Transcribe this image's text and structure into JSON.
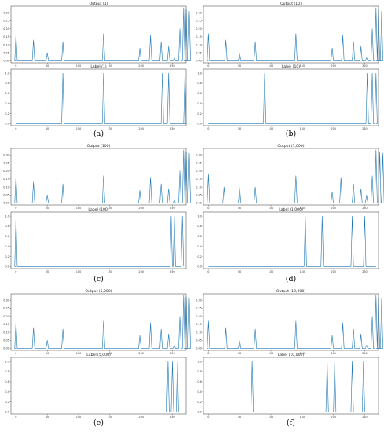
{
  "style": {
    "line_color": "#1f77b4"
  },
  "panels": [
    {
      "caption": "(a)",
      "charts": [
        {
          "type": "line",
          "title": "Output (1)",
          "xticks": [
            0,
            50,
            100,
            150,
            200,
            250
          ],
          "xlim": [
            -8,
            272
          ],
          "yticks": [
            0.0,
            0.05,
            0.1,
            0.15,
            0.2,
            0.25,
            0.3
          ],
          "ylim": [
            -0.012,
            0.34
          ],
          "peaks": [
            [
              0,
              0.17
            ],
            [
              28,
              0.13
            ],
            [
              50,
              0.05
            ],
            [
              75,
              0.12
            ],
            [
              140,
              0.17
            ],
            [
              198,
              0.08
            ],
            [
              215,
              0.16
            ],
            [
              232,
              0.12
            ],
            [
              244,
              0.09
            ],
            [
              253,
              0.02
            ],
            [
              262,
              0.2
            ],
            [
              268,
              0.33
            ],
            [
              272,
              0.32
            ],
            [
              277,
              0.31
            ]
          ]
        },
        {
          "type": "line",
          "title": "Label (1)",
          "xticks": [
            0,
            50,
            100,
            150,
            200,
            250
          ],
          "xlim": [
            -8,
            272
          ],
          "yticks": [
            0.0,
            0.2,
            0.4,
            0.6,
            0.8,
            1.0
          ],
          "ylim": [
            -0.04,
            1.08
          ],
          "peaks": [
            [
              75,
              1.0
            ],
            [
              140,
              1.0
            ],
            [
              234,
              1.0
            ],
            [
              244,
              1.0
            ],
            [
              270,
              1.0
            ]
          ]
        }
      ]
    },
    {
      "caption": "(b)",
      "charts": [
        {
          "type": "line",
          "title": "Output (10)",
          "xticks": [
            0,
            50,
            100,
            150,
            200,
            250
          ],
          "xlim": [
            -8,
            272
          ],
          "yticks": [
            0.0,
            0.05,
            0.1,
            0.15,
            0.2,
            0.25,
            0.3
          ],
          "ylim": [
            -0.012,
            0.34
          ],
          "peaks": [
            [
              0,
              0.17
            ],
            [
              28,
              0.13
            ],
            [
              50,
              0.05
            ],
            [
              75,
              0.12
            ],
            [
              140,
              0.17
            ],
            [
              198,
              0.08
            ],
            [
              215,
              0.16
            ],
            [
              232,
              0.12
            ],
            [
              244,
              0.09
            ],
            [
              253,
              0.02
            ],
            [
              262,
              0.2
            ],
            [
              268,
              0.33
            ],
            [
              272,
              0.32
            ],
            [
              277,
              0.31
            ]
          ]
        },
        {
          "type": "line",
          "title": "Label (10)",
          "xticks": [
            0,
            50,
            100,
            150,
            200,
            250
          ],
          "xlim": [
            -8,
            272
          ],
          "yticks": [
            0.0,
            0.2,
            0.4,
            0.6,
            0.8,
            1.0
          ],
          "ylim": [
            -0.04,
            1.08
          ],
          "peaks": [
            [
              90,
              1.0
            ],
            [
              254,
              1.0
            ],
            [
              262,
              1.0
            ],
            [
              268,
              1.0
            ]
          ]
        }
      ]
    },
    {
      "caption": "(c)",
      "charts": [
        {
          "type": "line",
          "title": "Output (100)",
          "xticks": [
            0,
            50,
            100,
            150,
            200,
            250
          ],
          "xlim": [
            -8,
            272
          ],
          "yticks": [
            0.0,
            0.05,
            0.1,
            0.15,
            0.2,
            0.25,
            0.3
          ],
          "ylim": [
            -0.012,
            0.34
          ],
          "peaks": [
            [
              0,
              0.17
            ],
            [
              28,
              0.13
            ],
            [
              50,
              0.05
            ],
            [
              75,
              0.12
            ],
            [
              140,
              0.17
            ],
            [
              198,
              0.08
            ],
            [
              215,
              0.16
            ],
            [
              232,
              0.12
            ],
            [
              244,
              0.09
            ],
            [
              253,
              0.02
            ],
            [
              262,
              0.2
            ],
            [
              268,
              0.33
            ],
            [
              272,
              0.32
            ],
            [
              277,
              0.31
            ]
          ]
        },
        {
          "type": "line",
          "title": "Label (100)",
          "xticks": [
            0,
            50,
            100,
            150,
            200,
            250
          ],
          "xlim": [
            -8,
            272
          ],
          "yticks": [
            0.0,
            0.2,
            0.4,
            0.6,
            0.8,
            1.0
          ],
          "ylim": [
            -0.04,
            1.08
          ],
          "peaks": [
            [
              0,
              1.0
            ],
            [
              248,
              1.0
            ],
            [
              253,
              1.0
            ],
            [
              266,
              1.0
            ]
          ]
        }
      ]
    },
    {
      "caption": "(d)",
      "charts": [
        {
          "type": "line",
          "title": "Output (1,000)",
          "xticks": [
            0,
            50,
            100,
            150,
            200,
            250
          ],
          "xlim": [
            -8,
            272
          ],
          "yticks": [
            0.0,
            0.05,
            0.1,
            0.15,
            0.2,
            0.25,
            0.3
          ],
          "ylim": [
            -0.012,
            0.34
          ],
          "peaks": [
            [
              0,
              0.18
            ],
            [
              25,
              0.1
            ],
            [
              50,
              0.1
            ],
            [
              75,
              0.1
            ],
            [
              140,
              0.17
            ],
            [
              198,
              0.07
            ],
            [
              212,
              0.16
            ],
            [
              232,
              0.12
            ],
            [
              244,
              0.09
            ],
            [
              253,
              0.05
            ],
            [
              262,
              0.17
            ],
            [
              268,
              0.33
            ],
            [
              274,
              0.32
            ],
            [
              279,
              0.31
            ]
          ]
        },
        {
          "type": "line",
          "title": "Label (1,000)",
          "xticks": [
            0,
            50,
            100,
            150,
            200,
            250
          ],
          "xlim": [
            -8,
            272
          ],
          "yticks": [
            0.0,
            0.2,
            0.4,
            0.6,
            0.8,
            1.0
          ],
          "ylim": [
            -0.04,
            1.08
          ],
          "peaks": [
            [
              155,
              1.0
            ],
            [
              182,
              1.0
            ],
            [
              230,
              1.0
            ],
            [
              250,
              1.0
            ]
          ]
        }
      ]
    },
    {
      "caption": "(e)",
      "charts": [
        {
          "type": "line",
          "title": "Output (5,000)",
          "xticks": [
            0,
            50,
            100,
            150,
            200,
            250
          ],
          "xlim": [
            -8,
            272
          ],
          "yticks": [
            0.0,
            0.05,
            0.1,
            0.15,
            0.2,
            0.25,
            0.3
          ],
          "ylim": [
            -0.012,
            0.34
          ],
          "peaks": [
            [
              0,
              0.17
            ],
            [
              28,
              0.13
            ],
            [
              50,
              0.05
            ],
            [
              75,
              0.12
            ],
            [
              140,
              0.17
            ],
            [
              198,
              0.08
            ],
            [
              215,
              0.16
            ],
            [
              232,
              0.12
            ],
            [
              244,
              0.09
            ],
            [
              253,
              0.02
            ],
            [
              262,
              0.2
            ],
            [
              268,
              0.33
            ],
            [
              272,
              0.32
            ],
            [
              277,
              0.31
            ]
          ]
        },
        {
          "type": "line",
          "title": "Label (5,000)",
          "xticks": [
            0,
            50,
            100,
            150,
            200,
            250
          ],
          "xlim": [
            -8,
            272
          ],
          "yticks": [
            0.0,
            0.2,
            0.4,
            0.6,
            0.8,
            1.0
          ],
          "ylim": [
            -0.04,
            1.08
          ],
          "peaks": [
            [
              243,
              1.0
            ],
            [
              250,
              1.0
            ],
            [
              258,
              1.0
            ]
          ]
        }
      ]
    },
    {
      "caption": "(f)",
      "charts": [
        {
          "type": "line",
          "title": "Output (10,000)",
          "xticks": [
            0,
            50,
            100,
            150,
            200,
            250
          ],
          "xlim": [
            -8,
            272
          ],
          "yticks": [
            0.0,
            0.05,
            0.1,
            0.15,
            0.2,
            0.25,
            0.3
          ],
          "ylim": [
            -0.012,
            0.34
          ],
          "peaks": [
            [
              0,
              0.17
            ],
            [
              28,
              0.13
            ],
            [
              50,
              0.05
            ],
            [
              75,
              0.12
            ],
            [
              140,
              0.17
            ],
            [
              198,
              0.08
            ],
            [
              215,
              0.16
            ],
            [
              232,
              0.12
            ],
            [
              244,
              0.09
            ],
            [
              253,
              0.02
            ],
            [
              262,
              0.2
            ],
            [
              268,
              0.33
            ],
            [
              272,
              0.32
            ],
            [
              277,
              0.31
            ]
          ]
        },
        {
          "type": "line",
          "title": "Label (10,000)",
          "xticks": [
            0,
            50,
            100,
            150,
            200,
            250
          ],
          "xlim": [
            -8,
            272
          ],
          "yticks": [
            0.0,
            0.2,
            0.4,
            0.6,
            0.8,
            1.0
          ],
          "ylim": [
            -0.04,
            1.08
          ],
          "peaks": [
            [
              70,
              1.0
            ],
            [
              190,
              1.0
            ],
            [
              202,
              1.0
            ],
            [
              230,
              1.0
            ],
            [
              248,
              1.0
            ]
          ]
        }
      ]
    }
  ]
}
